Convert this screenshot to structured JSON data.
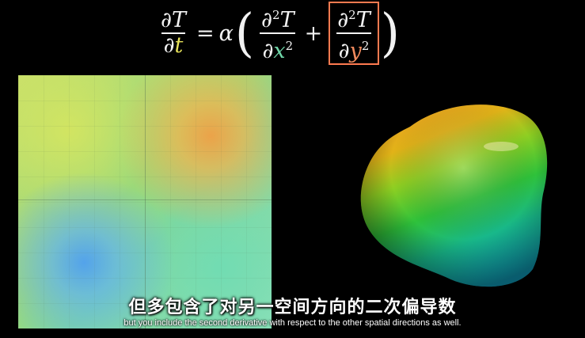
{
  "equation": {
    "lhs_num": "∂T",
    "lhs_den_d": "∂",
    "lhs_den_var": "t",
    "equals": "=",
    "alpha": "α",
    "open_paren": "(",
    "close_paren": ")",
    "term1_num": "∂",
    "term1_num_sup": "2",
    "term1_num_T": "T",
    "term1_den_d": "∂",
    "term1_den_var": "x",
    "term1_den_sup": "2",
    "plus": "+",
    "term2_num": "∂",
    "term2_num_sup": "2",
    "term2_num_T": "T",
    "term2_den_d": "∂",
    "term2_den_var": "y",
    "term2_den_sup": "2"
  },
  "colors": {
    "time_var": "#e8e35a",
    "x_var": "#6fd6a8",
    "y_var": "#f08a5d",
    "highlight_box": "#ff7a50"
  },
  "subtitles": {
    "chinese": "但多包含了对另一空间方向的二次偏导数",
    "english": "but you include the second derivative with respect to the other spatial directions as well."
  }
}
